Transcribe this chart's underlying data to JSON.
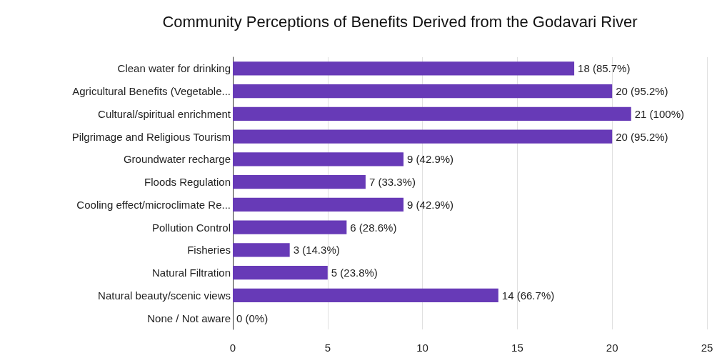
{
  "chart_data": {
    "type": "bar",
    "orientation": "horizontal",
    "title": "Community Perceptions of Benefits Derived from the Godavari River",
    "categories": [
      "Clean water for drinking",
      "Agricultural Benefits (Vegetable...",
      "Cultural/spiritual enrichment",
      "Pilgrimage and Religious Tourism",
      "Groundwater recharge",
      "Floods Regulation",
      "Cooling effect/microclimate Re...",
      "Pollution Control",
      "Fisheries",
      "Natural Filtration",
      "Natural beauty/scenic views",
      "None / Not aware"
    ],
    "values": [
      18,
      20,
      21,
      20,
      9,
      7,
      9,
      6,
      3,
      5,
      14,
      0
    ],
    "value_labels": [
      "18 (85.7%)",
      "20 (95.2%)",
      "21 (100%)",
      "20 (95.2%)",
      "9 (42.9%)",
      "7 (33.3%)",
      "9 (42.9%)",
      "6 (28.6%)",
      "3 (14.3%)",
      "5 (23.8%)",
      "14 (66.7%)",
      "0 (0%)"
    ],
    "color": "#673ab7",
    "xlim": [
      0,
      25
    ],
    "xticks": [
      0,
      5,
      10,
      15,
      20,
      25
    ],
    "grid": "x"
  }
}
